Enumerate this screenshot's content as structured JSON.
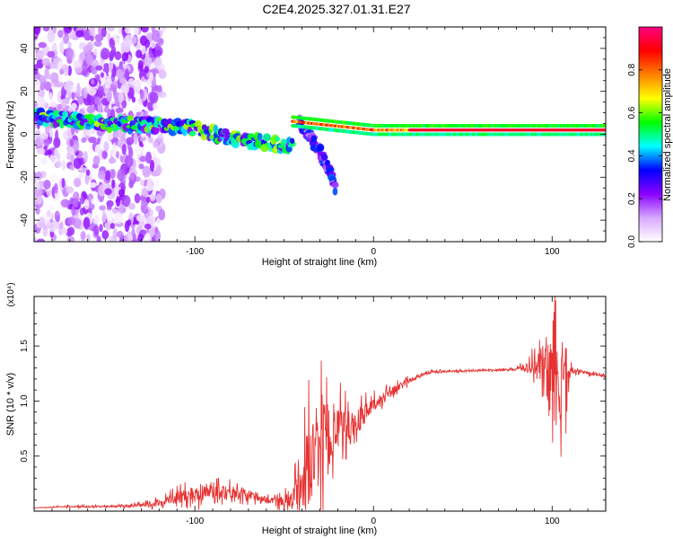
{
  "title": "C2E4.2025.327.01.31.E27",
  "chart_data": [
    {
      "type": "heatmap",
      "xlabel": "Height of straight line (km)",
      "ylabel": "Frequency (Hz)",
      "xlim": [
        -190,
        130
      ],
      "ylim": [
        -50,
        50
      ],
      "xticks": [
        -100,
        0,
        100
      ],
      "yticks": [
        -40,
        -20,
        0,
        20,
        40
      ],
      "colorbar": {
        "label": "Normalized spectral amplitude",
        "range": [
          0.0,
          1.0
        ],
        "ticks": [
          0.0,
          0.2,
          0.4,
          0.6,
          0.8
        ],
        "tick_labels": [
          "0.0",
          "0.2",
          "0.4",
          "0.6",
          "0.8"
        ],
        "colors": [
          "#ffffff",
          "#d8a8ff",
          "#8a00ff",
          "#0000ff",
          "#00ffff",
          "#00ff00",
          "#ffff00",
          "#ff8000",
          "#ff0000",
          "#ff0080"
        ]
      },
      "features": [
        {
          "name": "scattered noise",
          "x_range": [
            -190,
            -118
          ],
          "y_range": [
            -50,
            50
          ],
          "amplitude": 0.15
        },
        {
          "name": "descending branch",
          "x": [
            -190,
            -150,
            -120,
            -100,
            -80,
            -60,
            -45
          ],
          "y": [
            8,
            5,
            4,
            3,
            -2,
            -4,
            -6
          ],
          "amplitude": 0.5
        },
        {
          "name": "steep branch",
          "x": [
            -42,
            -35,
            -28,
            -22
          ],
          "y": [
            5,
            -2,
            -12,
            -24
          ],
          "amplitude": 0.3
        },
        {
          "name": "steady line",
          "x": [
            -45,
            0,
            20,
            60,
            100,
            130
          ],
          "y": [
            6,
            2,
            2,
            2,
            2,
            2
          ],
          "amplitude": 0.9
        }
      ]
    },
    {
      "type": "line",
      "xlabel": "Height of straight line (km)",
      "ylabel": "SNR (10 * v/v)",
      "scale_label": "(x10⁴)",
      "xlim": [
        -190,
        130
      ],
      "ylim": [
        0,
        1.95
      ],
      "xticks": [
        -100,
        0,
        100
      ],
      "yticks": [
        0.5,
        1.0,
        1.5
      ],
      "ytick_labels": [
        "0.5",
        "1.0",
        "1.5"
      ],
      "series": [
        {
          "name": "SNR",
          "color": "#e63232",
          "x": [
            -190,
            -170,
            -150,
            -130,
            -120,
            -110,
            -100,
            -90,
            -80,
            -70,
            -60,
            -50,
            -45,
            -40,
            -35,
            -30,
            -25,
            -20,
            -15,
            -10,
            -5,
            0,
            5,
            10,
            15,
            20,
            25,
            30,
            40,
            50,
            60,
            70,
            80,
            85,
            90,
            95,
            100,
            103,
            105,
            108,
            110,
            115,
            120,
            125,
            130
          ],
          "y": [
            0.03,
            0.04,
            0.04,
            0.05,
            0.07,
            0.12,
            0.15,
            0.18,
            0.17,
            0.14,
            0.1,
            0.08,
            0.12,
            0.25,
            0.45,
            0.55,
            0.65,
            0.7,
            0.72,
            0.78,
            0.88,
            0.95,
            1.02,
            1.08,
            1.13,
            1.18,
            1.22,
            1.26,
            1.27,
            1.27,
            1.28,
            1.28,
            1.29,
            1.3,
            1.32,
            1.28,
            1.2,
            1.05,
            1.0,
            1.15,
            1.28,
            1.27,
            1.25,
            1.24,
            1.22
          ],
          "noise": [
            0.0,
            0.01,
            0.01,
            0.02,
            0.04,
            0.07,
            0.1,
            0.1,
            0.08,
            0.06,
            0.04,
            0.06,
            0.15,
            0.35,
            0.5,
            0.55,
            0.4,
            0.3,
            0.2,
            0.16,
            0.12,
            0.08,
            0.07,
            0.06,
            0.04,
            0.03,
            0.02,
            0.02,
            0.01,
            0.01,
            0.01,
            0.01,
            0.02,
            0.05,
            0.12,
            0.3,
            0.7,
            0.6,
            0.5,
            0.3,
            0.05,
            0.02,
            0.02,
            0.02,
            0.02
          ]
        }
      ]
    }
  ]
}
